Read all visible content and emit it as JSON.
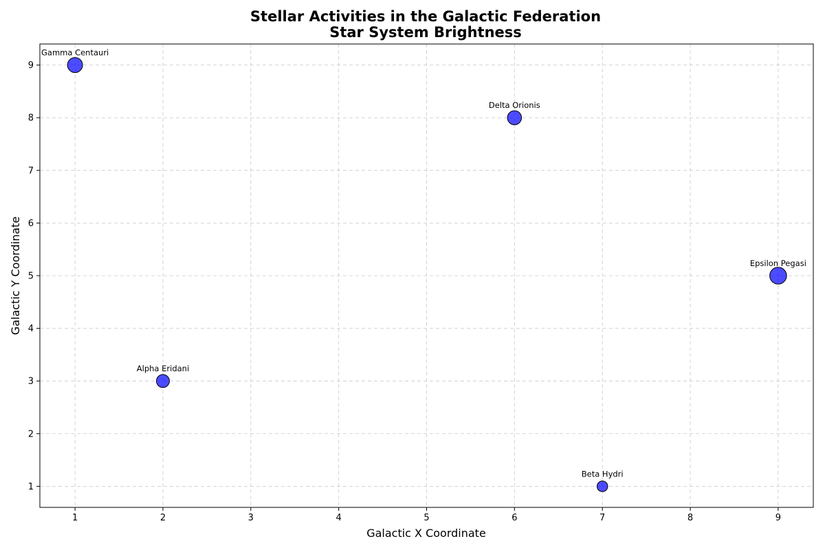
{
  "chart_data": {
    "type": "scatter",
    "title": "Stellar Activities in the Galactic Federation",
    "subtitle": "Star System Brightness",
    "xlabel": "Galactic X Coordinate",
    "ylabel": "Galactic Y Coordinate",
    "xlim": [
      0.6,
      9.4
    ],
    "ylim": [
      0.6,
      9.4
    ],
    "xticks": [
      1,
      2,
      3,
      4,
      5,
      6,
      7,
      8,
      9
    ],
    "yticks": [
      1,
      2,
      3,
      4,
      5,
      6,
      7,
      8,
      9
    ],
    "grid": true,
    "color": "#0000ff",
    "points": [
      {
        "label": "Alpha Eridani",
        "x": 2,
        "y": 3,
        "size": 3
      },
      {
        "label": "Beta Hydri",
        "x": 7,
        "y": 1,
        "size": 2
      },
      {
        "label": "Gamma Centauri",
        "x": 1,
        "y": 9,
        "size": 4
      },
      {
        "label": "Delta Orionis",
        "x": 6,
        "y": 8,
        "size": 3.5
      },
      {
        "label": "Epsilon Pegasi",
        "x": 9,
        "y": 5,
        "size": 5
      }
    ]
  }
}
